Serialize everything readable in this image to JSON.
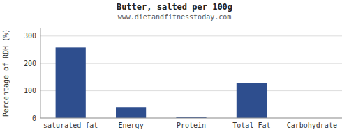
{
  "chart_data": {
    "type": "bar",
    "title": "Butter, salted per 100g",
    "subtitle": "www.dietandfitnesstoday.com",
    "categories": [
      "saturated-fat",
      "Energy",
      "Protein",
      "Total-Fat",
      "Carbohydrate"
    ],
    "values": [
      258,
      40,
      3,
      127,
      0
    ],
    "color": "#2e4e8e",
    "ylabel": "Percentage of RDH (%)",
    "ylim": [
      0,
      330
    ],
    "yticks": [
      0,
      100,
      200,
      300
    ],
    "grid": true
  }
}
